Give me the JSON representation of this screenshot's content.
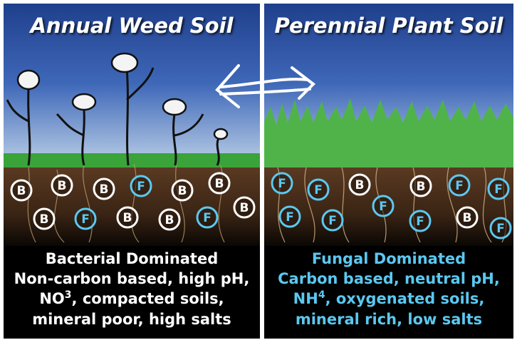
{
  "left": {
    "title": "Annual Weed Soil",
    "badges": [
      "B",
      "B",
      "B",
      "F",
      "B",
      "B",
      "B",
      "B",
      "F",
      "B",
      "B",
      "F"
    ],
    "caption": {
      "heading": "Bacterial Dominated",
      "line1": "Non-carbon based, high pH,",
      "line2": {
        "prefix": "NO",
        "sup": "3",
        "suffix": ", compacted soils,"
      },
      "line3": "mineral poor, high salts"
    }
  },
  "right": {
    "title": "Perennial Plant Soil",
    "badges": [
      "F",
      "F",
      "B",
      "B",
      "F",
      "F",
      "F",
      "F",
      "F",
      "F",
      "B",
      "F"
    ],
    "caption": {
      "heading": "Fungal Dominated",
      "line1": "Carbon based, neutral pH,",
      "line2": {
        "prefix": "NH",
        "sup": "4",
        "suffix": ", oxygenated soils,"
      },
      "line3": "mineral rich, low salts"
    }
  }
}
